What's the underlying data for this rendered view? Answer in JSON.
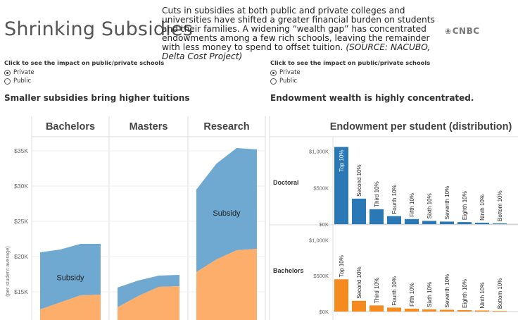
{
  "header": {
    "title": "Shrinking Subsidies",
    "description": "Cuts in subsidies at both public and private colleges and universities have shifted a greater financial burden on students and their families. A widening “wealth gap” has concentrated endowments among a few rich schools, leaving the remainder with less money to spend to offset tuition.",
    "source": "(SOURCE: NACUBO, Delta Cost Project)",
    "logo_text": "CNBC",
    "logo_icon": "peacock-icon"
  },
  "controls": [
    {
      "title": "Click to see the impact on public/private schools",
      "options": [
        "Private",
        "Public"
      ],
      "selected": "Private"
    },
    {
      "title": "Click to see the impact on public/private schools",
      "options": [
        "Private",
        "Public"
      ],
      "selected": "Private"
    }
  ],
  "sections": {
    "left_title": "Smaller subsidies bring higher tuitions",
    "right_title": "Endowment wealth is highly concentrated."
  },
  "colors": {
    "subsidy": "#6fa8d0",
    "tuition": "#fdae6b",
    "doctoral_bar": "#2a78b5",
    "bachelors_bar": "#f58a1f",
    "grid": "#dddddd"
  },
  "chart_data": [
    {
      "type": "area",
      "ylabel": "(per student average)",
      "y_ticks": [
        "$35K",
        "$30K",
        "$25K",
        "$20K",
        "$15K"
      ],
      "y_tick_values": [
        35000,
        30000,
        25000,
        20000,
        15000
      ],
      "ylim": [
        11000,
        37000
      ],
      "panels": [
        {
          "name": "Bachelors",
          "subsidy_label": "Subsidy",
          "total": [
            20600,
            21000,
            21800,
            21800
          ],
          "tuition": [
            12500,
            13500,
            14500,
            14600
          ]
        },
        {
          "name": "Masters",
          "subsidy_label": "",
          "total": [
            15600,
            16600,
            17300,
            17400
          ],
          "tuition": [
            12800,
            14400,
            15700,
            15800
          ]
        },
        {
          "name": "Research",
          "subsidy_label": "Subsidy",
          "total": [
            29500,
            33200,
            35400,
            35200
          ],
          "tuition": [
            17800,
            19600,
            20900,
            21100
          ]
        }
      ],
      "series": [
        {
          "name": "Subsidy"
        }
      ]
    },
    {
      "type": "bar",
      "title": "Endowment per student  (distribution)",
      "categories": [
        "Top 10%",
        "Second 10%",
        "Third 10%",
        "Fourth 10%",
        "Fifth 10%",
        "Sixth 10%",
        "Seventh 10%",
        "Eighth 10%",
        "Ninth 10%",
        "Bottom 10%"
      ],
      "y_ticks": [
        "$1,000K",
        "$500K",
        "$0K"
      ],
      "y_tick_values": [
        1000000,
        500000,
        0
      ],
      "ylim": [
        0,
        1200000
      ],
      "series": [
        {
          "name": "Doctoral",
          "values": [
            1060000,
            350000,
            205000,
            110000,
            70000,
            45000,
            35000,
            28000,
            20000,
            10000
          ]
        },
        {
          "name": "Bachelors",
          "values": [
            450000,
            150000,
            85000,
            55000,
            40000,
            30000,
            25000,
            20000,
            15000,
            8000
          ]
        }
      ]
    }
  ]
}
